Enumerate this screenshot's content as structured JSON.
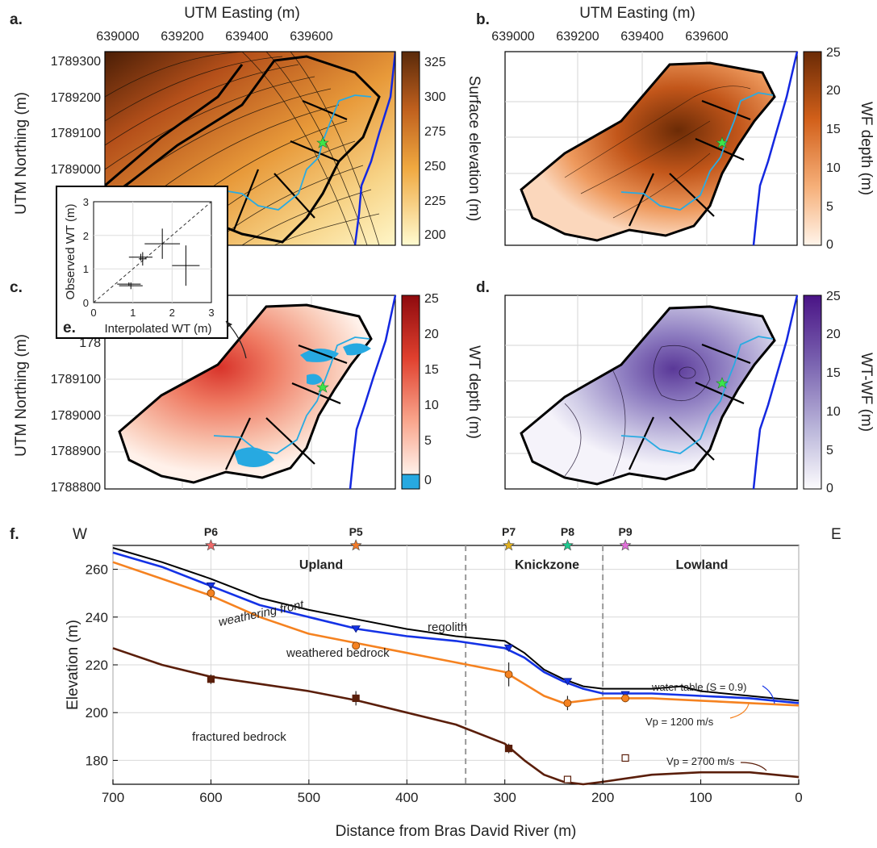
{
  "panels": {
    "a": "a.",
    "b": "b.",
    "c": "c.",
    "d": "d.",
    "e": "e.",
    "f": "f."
  },
  "maps": {
    "x_title": "UTM Easting (m)",
    "y_title": "UTM Northing (m)",
    "easting_ticks": [
      "639000",
      "639200",
      "639400",
      "639600"
    ],
    "northing_ticks_a": [
      "1789300",
      "1789200",
      "1789100",
      "1789000",
      "178",
      "178"
    ],
    "northing_ticks_c": [
      "178",
      "178",
      "1789100",
      "1789000",
      "1788900",
      "1788800"
    ],
    "colorbars": {
      "a": {
        "label": "Surface elevation (m)",
        "ticks": [
          "325",
          "300",
          "275",
          "250",
          "225",
          "200"
        ],
        "colors": [
          "#5a2a0a",
          "#fffbd0"
        ]
      },
      "b": {
        "label": "WF depth (m)",
        "ticks": [
          "25",
          "20",
          "15",
          "10",
          "5",
          "0"
        ],
        "colors": [
          "#6b2b06",
          "#fff4ea"
        ]
      },
      "c": {
        "label": "WT depth (m)",
        "ticks": [
          "25",
          "20",
          "15",
          "10",
          "5",
          "0"
        ],
        "colors": [
          "#8e0a0e",
          "#fff1ea"
        ],
        "negative_color": "#27a9e1"
      },
      "d": {
        "label": "WT-WF (m)",
        "ticks": [
          "25",
          "20",
          "15",
          "10",
          "5",
          "0"
        ],
        "colors": [
          "#4a1486",
          "#fcfbfd"
        ]
      }
    },
    "stream_color": "#29abe2",
    "river_color": "#1428e0",
    "star_color": "#3ce64a"
  },
  "inset": {
    "xlabel": "Interpolated WT (m)",
    "ylabel": "Observed WT (m)",
    "xticks": [
      "0",
      "1",
      "2",
      "3"
    ],
    "yticks": [
      "0",
      "1",
      "2",
      "3"
    ]
  },
  "profile": {
    "west": "W",
    "east": "E",
    "zones": [
      "Upland",
      "Knickzone",
      "Lowland"
    ],
    "zone_colors": [
      "#e8202a",
      "#2ce05a",
      "#e05ce0"
    ],
    "piezometers": [
      {
        "label": "P6",
        "color": "#ef6a6a"
      },
      {
        "label": "P5",
        "color": "#f07a2a"
      },
      {
        "label": "P7",
        "color": "#e0b020"
      },
      {
        "label": "P8",
        "color": "#1fc88f"
      },
      {
        "label": "P9",
        "color": "#e070d8"
      }
    ],
    "annotations": {
      "regolith": "regolith",
      "weathered": "weathered bedrock",
      "fractured": "fractured bedrock",
      "weathering_front": "weathering front",
      "water_table": "water table (S = 0.9)",
      "vp1200": "Vp = 1200 m/s",
      "vp2700": "Vp = 2700 m/s"
    }
  },
  "chart_data": [
    {
      "type": "heatmap",
      "title": "",
      "xlabel": "UTM Easting (m)",
      "ylabel": "UTM Northing (m)",
      "colorbar_label": "Surface elevation (m)",
      "colorbar_range": [
        190,
        330
      ],
      "xticks": [
        639000,
        639200,
        639400,
        639600
      ],
      "yticks": [
        1789300,
        1789200,
        1789100,
        1789000
      ]
    },
    {
      "type": "heatmap",
      "title": "",
      "xlabel": "UTM Easting (m)",
      "colorbar_label": "WF depth (m)",
      "colorbar_range": [
        0,
        25
      ]
    },
    {
      "type": "heatmap",
      "title": "",
      "ylabel": "UTM Northing (m)",
      "colorbar_label": "WT depth (m)",
      "colorbar_range": [
        -1,
        25
      ],
      "yticks": [
        1789100,
        1789000,
        1788900,
        1788800
      ]
    },
    {
      "type": "heatmap",
      "title": "",
      "colorbar_label": "WT-WF (m)",
      "colorbar_range": [
        0,
        25
      ]
    },
    {
      "type": "scatter",
      "title": "",
      "xlabel": "Interpolated WT (m)",
      "ylabel": "Observed WT (m)",
      "xlim": [
        0,
        3
      ],
      "ylim": [
        0,
        3
      ],
      "points": [
        {
          "x": 1.75,
          "y": 1.75,
          "xerr": 0.45,
          "yerr": 0.45
        },
        {
          "x": 2.35,
          "y": 1.1,
          "xerr": 0.35,
          "yerr": 0.6
        },
        {
          "x": 1.2,
          "y": 1.35,
          "xerr": 0.3,
          "yerr": 0.1
        },
        {
          "x": 1.25,
          "y": 1.3,
          "xerr": 0.1,
          "yerr": 0.2
        },
        {
          "x": 0.9,
          "y": 0.55,
          "xerr": 0.3,
          "yerr": 0.05
        },
        {
          "x": 0.95,
          "y": 0.5,
          "xerr": 0.3,
          "yerr": 0.1
        }
      ],
      "reference_line": "1:1"
    },
    {
      "type": "line",
      "title": "",
      "xlabel": "Distance from Bras David River (m)",
      "ylabel": "Elevation (m)",
      "xlim": [
        700,
        0
      ],
      "ylim": [
        170,
        270
      ],
      "xticks": [
        700,
        600,
        500,
        400,
        300,
        200,
        100,
        0
      ],
      "yticks": [
        180,
        200,
        220,
        240,
        260
      ],
      "zone_boundaries": [
        340,
        200
      ],
      "series": [
        {
          "name": "surface",
          "color": "#000000",
          "x": [
            700,
            650,
            600,
            550,
            500,
            450,
            400,
            350,
            300,
            280,
            260,
            240,
            220,
            200,
            150,
            120,
            100,
            50,
            0
          ],
          "y": [
            269,
            263,
            256,
            248,
            243,
            239,
            235,
            232,
            230,
            225,
            218,
            214,
            211,
            210,
            210,
            211,
            209,
            207,
            205
          ]
        },
        {
          "name": "water table (S = 0.9)",
          "color": "#1432e6",
          "x": [
            700,
            650,
            600,
            550,
            500,
            450,
            400,
            350,
            300,
            280,
            260,
            240,
            220,
            200,
            150,
            100,
            50,
            0
          ],
          "y": [
            267,
            261,
            253,
            245,
            240,
            235,
            232,
            230,
            227,
            223,
            217,
            213,
            210,
            208,
            208,
            207,
            206,
            204
          ]
        },
        {
          "name": "Vp = 1200 m/s",
          "color": "#f58220",
          "x": [
            700,
            650,
            600,
            550,
            500,
            450,
            400,
            350,
            300,
            280,
            260,
            240,
            220,
            200,
            150,
            100,
            50,
            0
          ],
          "y": [
            263,
            256,
            249,
            240,
            233,
            229,
            225,
            221,
            217,
            212,
            207,
            204,
            205,
            206,
            206,
            205,
            204,
            203
          ]
        },
        {
          "name": "Vp = 2700 m/s",
          "color": "#5a1e0a",
          "x": [
            700,
            650,
            600,
            550,
            500,
            450,
            400,
            350,
            300,
            280,
            260,
            240,
            220,
            200,
            150,
            100,
            50,
            0
          ],
          "y": [
            227,
            220,
            215,
            212,
            209,
            205,
            200,
            195,
            187,
            180,
            174,
            171,
            170,
            171,
            174,
            175,
            175,
            173
          ]
        }
      ],
      "observations": {
        "water_table": [
          {
            "x": 600,
            "y": 253
          },
          {
            "x": 452,
            "y": 235
          },
          {
            "x": 296,
            "y": 227
          },
          {
            "x": 236,
            "y": 213
          },
          {
            "x": 177,
            "y": 207.5
          }
        ],
        "weathering_front": [
          {
            "x": 600,
            "y": 250,
            "err": 3
          },
          {
            "x": 452,
            "y": 228,
            "err": 1
          },
          {
            "x": 296,
            "y": 216,
            "err": 5
          },
          {
            "x": 236,
            "y": 204,
            "err": 3
          },
          {
            "x": 177,
            "y": 206,
            "err": 1
          }
        ],
        "fractured_bedrock": [
          {
            "x": 600,
            "y": 214,
            "err": 2
          },
          {
            "x": 452,
            "y": 206,
            "err": 3
          },
          {
            "x": 296,
            "y": 185,
            "err": 2
          },
          {
            "x": 236,
            "y": 172,
            "open": true
          },
          {
            "x": 177,
            "y": 181,
            "open": true
          }
        ]
      },
      "piezometer_positions": [
        {
          "label": "P6",
          "x": 600
        },
        {
          "label": "P5",
          "x": 452
        },
        {
          "label": "P7",
          "x": 296
        },
        {
          "label": "P8",
          "x": 236
        },
        {
          "label": "P9",
          "x": 177
        }
      ]
    }
  ]
}
